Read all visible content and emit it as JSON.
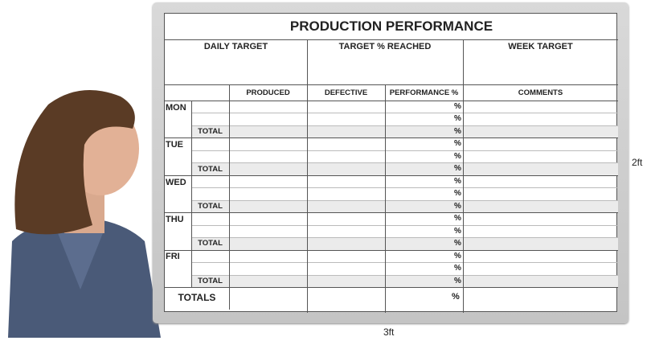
{
  "title": "PRODUCTION PERFORMANCE",
  "top_headers": [
    "DAILY TARGET",
    "TARGET % REACHED",
    "WEEK TARGET"
  ],
  "column_headers": [
    "PRODUCED",
    "DEFECTIVE",
    "PERFORMANCE %",
    "COMMENTS"
  ],
  "days": [
    "MON",
    "TUE",
    "WED",
    "THU",
    "FRI"
  ],
  "total_label": "TOTAL",
  "totals_label": "TOTALS",
  "percent_symbol": "%",
  "dimensions": {
    "height": "2ft",
    "width": "3ft"
  },
  "colors": {
    "frame": "#c8c8c8",
    "shade": "#ebebeb",
    "line": "#555555"
  }
}
